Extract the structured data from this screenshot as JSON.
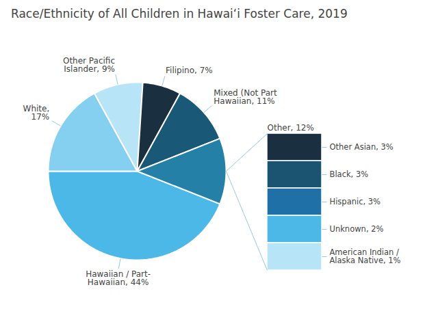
{
  "chart_data": [
    {
      "type": "pie",
      "title": "Race/Ethnicity of All Children in Hawaiʻi Foster Care, 2019",
      "categories": [
        "Hawaiian / Part-\nHawaiian, 44%",
        "White,\n17%",
        "Other Pacific\nIslander, 9%",
        "Filipino, 7%",
        "Mixed (Not Part\nHawaiian, 11%",
        "Other, 12%"
      ],
      "values": [
        44,
        17,
        9,
        7,
        11,
        12
      ],
      "colors": [
        "#4cb8e8",
        "#85d0f0",
        "#b8e4f8",
        "#1a3040",
        "#1a5878",
        "#2580a8"
      ]
    },
    {
      "type": "legend",
      "categories": [
        "Other Asian, 3%",
        "Black, 3%",
        "Hispanic, 3%",
        "Unknown, 2%",
        "American Indian /\nAlaska Native, 1%"
      ],
      "colors": [
        "#1a3040",
        "#1a5470",
        "#2070a8",
        "#4cb8e8",
        "#b8e4f8"
      ]
    }
  ]
}
